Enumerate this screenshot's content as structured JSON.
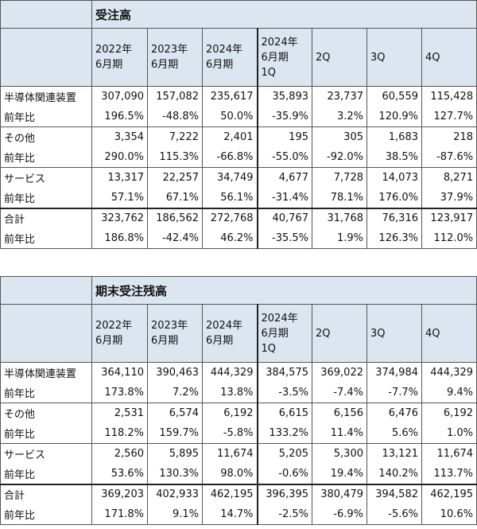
{
  "tables": [
    {
      "title": "受注高",
      "headers": [
        [
          "2022年",
          "6月期"
        ],
        [
          "2023年",
          "6月期"
        ],
        [
          "2024年",
          "6月期"
        ],
        [
          "2024年",
          "6月期",
          "1Q"
        ],
        [
          "2Q"
        ],
        [
          "3Q"
        ],
        [
          "4Q"
        ]
      ],
      "rows": [
        [
          "半導体関連装置",
          "307,090",
          "157,082",
          "235,617",
          "35,893",
          "23,737",
          "60,559",
          "115,428"
        ],
        [
          "前年比",
          "196.5%",
          "-48.8%",
          "50.0%",
          "-35.9%",
          "3.2%",
          "120.9%",
          "127.7%"
        ],
        [
          "その他",
          "3,354",
          "7,222",
          "2,401",
          "195",
          "305",
          "1,683",
          "218"
        ],
        [
          "前年比",
          "290.0%",
          "115.3%",
          "-66.8%",
          "-55.0%",
          "-92.0%",
          "38.5%",
          "-87.6%"
        ],
        [
          "サービス",
          "13,317",
          "22,257",
          "34,749",
          "4,677",
          "7,728",
          "14,073",
          "8,271"
        ],
        [
          "前年比",
          "57.1%",
          "67.1%",
          "56.1%",
          "-31.4%",
          "78.1%",
          "176.0%",
          "37.9%"
        ],
        [
          "合計",
          "323,762",
          "186,562",
          "272,768",
          "40,767",
          "31,768",
          "76,316",
          "123,917"
        ],
        [
          "前年比",
          "186.8%",
          "-42.4%",
          "46.2%",
          "-35.5%",
          "1.9%",
          "126.3%",
          "112.0%"
        ]
      ]
    },
    {
      "title": "期末受注残高",
      "headers": [
        [
          "2022年",
          "6月期"
        ],
        [
          "2023年",
          "6月期"
        ],
        [
          "2024年",
          "6月期"
        ],
        [
          "2024年",
          "6月期",
          "1Q"
        ],
        [
          "2Q"
        ],
        [
          "3Q"
        ],
        [
          "4Q"
        ]
      ],
      "rows": [
        [
          "半導体関連装置",
          "364,110",
          "390,463",
          "444,329",
          "384,575",
          "369,022",
          "374,984",
          "444,329"
        ],
        [
          "前年比",
          "173.8%",
          "7.2%",
          "13.8%",
          "-3.5%",
          "-7.4%",
          "-7.7%",
          "9.4%"
        ],
        [
          "その他",
          "2,531",
          "6,574",
          "6,192",
          "6,615",
          "6,156",
          "6,476",
          "6,192"
        ],
        [
          "前年比",
          "118.2%",
          "159.7%",
          "-5.8%",
          "133.2%",
          "11.4%",
          "5.6%",
          "1.0%"
        ],
        [
          "サービス",
          "2,560",
          "5,895",
          "11,674",
          "5,205",
          "5,300",
          "13,121",
          "11,674"
        ],
        [
          "前年比",
          "53.6%",
          "130.3%",
          "98.0%",
          "-0.6%",
          "19.4%",
          "140.2%",
          "113.7%"
        ],
        [
          "合計",
          "369,203",
          "402,933",
          "462,195",
          "396,395",
          "380,479",
          "394,582",
          "462,195"
        ],
        [
          "前年比",
          "171.8%",
          "9.1%",
          "14.7%",
          "-2.5%",
          "-6.9%",
          "-5.6%",
          "10.6%"
        ]
      ]
    }
  ]
}
